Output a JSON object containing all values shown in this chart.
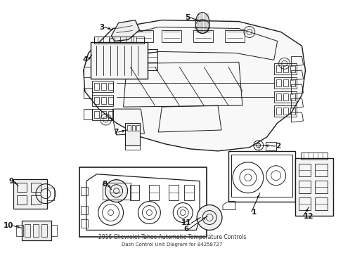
{
  "title": "2016 Chevrolet Tahoe Automatic Temperature Controls",
  "subtitle": "Dash Control Unit Diagram for 84258727",
  "background_color": "#ffffff",
  "line_color": "#1a1a1a",
  "label_color": "#111111",
  "fig_width": 4.89,
  "fig_height": 3.6,
  "dpi": 100
}
